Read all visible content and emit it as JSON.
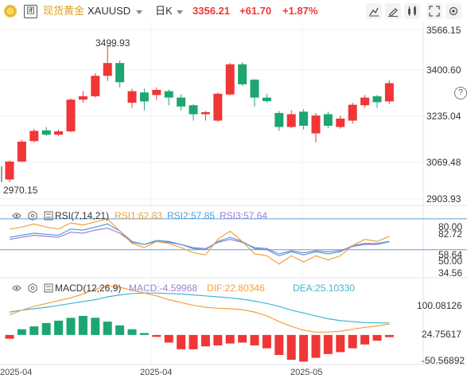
{
  "header": {
    "collapse_label": "团",
    "symbol_name": "现货黄金",
    "symbol_code": "XAUUSD",
    "period": "日K",
    "price": "3356.21",
    "change": "+61.70",
    "change_pct": "+1.87%",
    "tools": [
      "drawing-icon",
      "pencil-icon",
      "indicators-icon",
      "fullscreen-icon",
      "settings-icon"
    ]
  },
  "colors": {
    "up": "#f03636",
    "down": "#1ea672",
    "price_up_text": "#f03636",
    "grid": "#eef0f3",
    "rsi1": "#f0a23c",
    "rsi2": "#4aa0d8",
    "rsi3": "#9b7fd4",
    "dif": "#f0a23c",
    "dea": "#40b8d0",
    "hline": "#5aa0d8"
  },
  "price_axis": [
    "3566.15",
    "3400.60",
    "3235.04",
    "3069.48",
    "2903.93"
  ],
  "annotations": {
    "high": "3499.93",
    "low": "2970.15"
  },
  "rsi_panel": {
    "title": "RSI(7,14,21)",
    "rsi1_label": "RSI1:62.83",
    "rsi2_label": "RSI2:57.85",
    "rsi3_label": "RSI3:57.64",
    "axis": [
      "80.00",
      "82.72",
      "58.64",
      "50.00",
      "34.56"
    ]
  },
  "macd_panel": {
    "title": "MACD(12,26,9)",
    "macd_label": "MACD:-4.59968",
    "dif_label": "DIF:22.80346",
    "dea_label": "DEA:25.10330",
    "axis": [
      "100.08126",
      "24.75617",
      "-50.56892"
    ]
  },
  "x_axis": [
    "2025-04",
    "2025-04",
    "2025-05"
  ],
  "chart_data": {
    "type": "candlestick",
    "series_name": "XAUUSD 日K",
    "ylim": [
      2903.93,
      3566.15
    ],
    "ohlc": [
      [
        2980,
        3055,
        2970.15,
        3050
      ],
      [
        3050,
        3135,
        3048,
        3128
      ],
      [
        3130,
        3178,
        3125,
        3170
      ],
      [
        3172,
        3185,
        3150,
        3155
      ],
      [
        3155,
        3175,
        3150,
        3168
      ],
      [
        3168,
        3297,
        3165,
        3292
      ],
      [
        3292,
        3325,
        3280,
        3305
      ],
      [
        3305,
        3395,
        3300,
        3385
      ],
      [
        3385,
        3499.93,
        3365,
        3435
      ],
      [
        3435,
        3445,
        3340,
        3360
      ],
      [
        3280,
        3335,
        3260,
        3325
      ],
      [
        3320,
        3335,
        3250,
        3285
      ],
      [
        3310,
        3340,
        3290,
        3330
      ],
      [
        3325,
        3332,
        3270,
        3300
      ],
      [
        3300,
        3313,
        3250,
        3265
      ],
      [
        3270,
        3275,
        3210,
        3235
      ],
      [
        3235,
        3248,
        3210,
        3243
      ],
      [
        3210,
        3320,
        3205,
        3315
      ],
      [
        3312,
        3435,
        3308,
        3430
      ],
      [
        3430,
        3438,
        3345,
        3352
      ],
      [
        3370,
        3372,
        3265,
        3300
      ],
      [
        3300,
        3315,
        3280,
        3286
      ],
      [
        3240,
        3248,
        3170,
        3185
      ],
      [
        3185,
        3250,
        3180,
        3235
      ],
      [
        3245,
        3255,
        3175,
        3190
      ],
      [
        3160,
        3240,
        3125,
        3230
      ],
      [
        3235,
        3245,
        3180,
        3190
      ],
      [
        3185,
        3230,
        3178,
        3218
      ],
      [
        3210,
        3280,
        3198,
        3272
      ],
      [
        3270,
        3310,
        3260,
        3300
      ],
      [
        3305,
        3310,
        3260,
        3282
      ],
      [
        3285,
        3367,
        3275,
        3356.21
      ]
    ],
    "rsi": {
      "rsi1": [
        70,
        72,
        75,
        72,
        70,
        76,
        74,
        77,
        80,
        68,
        56,
        52,
        58,
        56,
        52,
        47,
        45,
        60,
        68,
        58,
        46,
        44,
        36,
        44,
        38,
        44,
        40,
        44,
        54,
        60,
        58,
        63
      ],
      "rsi2": [
        62,
        64,
        66,
        65,
        64,
        70,
        69,
        72,
        75,
        68,
        58,
        55,
        59,
        58,
        55,
        51,
        50,
        58,
        62,
        58,
        51,
        50,
        44,
        48,
        45,
        48,
        46,
        48,
        54,
        56,
        56,
        58
      ],
      "rsi3": [
        60,
        62,
        64,
        63,
        62,
        67,
        66,
        69,
        71,
        66,
        57,
        55,
        58,
        57,
        55,
        52,
        51,
        57,
        60,
        57,
        52,
        51,
        46,
        49,
        47,
        49,
        48,
        49,
        53,
        55,
        55,
        57.64
      ],
      "ylim": [
        25,
        90
      ]
    },
    "macd": {
      "hist": [
        -8,
        12,
        18,
        25,
        30,
        36,
        40,
        36,
        28,
        20,
        12,
        4,
        -4,
        -16,
        -30,
        -30,
        -24,
        -22,
        -18,
        -16,
        -22,
        -28,
        -42,
        -52,
        -56,
        -48,
        -40,
        -36,
        -28,
        -20,
        -12,
        -4.6
      ],
      "dif": [
        42,
        52,
        60,
        66,
        72,
        78,
        86,
        96,
        103,
        100,
        94,
        88,
        82,
        74,
        68,
        62,
        58,
        56,
        55,
        53,
        48,
        40,
        28,
        18,
        10,
        6,
        6,
        8,
        12,
        16,
        19,
        22.8
      ],
      "dea": [
        48,
        52,
        55,
        58,
        62,
        66,
        70,
        74,
        80,
        84,
        87,
        88,
        88,
        87,
        86,
        84,
        82,
        80,
        78,
        75,
        71,
        66,
        60,
        52,
        46,
        40,
        34,
        30,
        28,
        26,
        25.5,
        25.1
      ],
      "ylim": [
        -62,
        115
      ]
    }
  }
}
